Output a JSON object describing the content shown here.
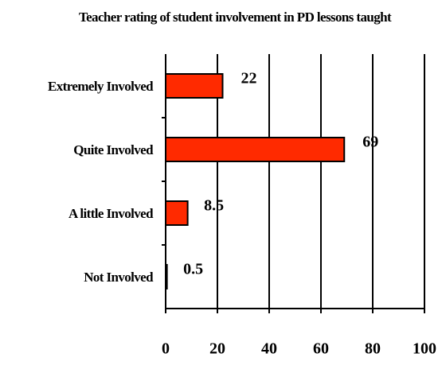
{
  "chart_data": {
    "type": "hbar",
    "title": "Teacher rating of student involvement in PD lessons taught",
    "categories": [
      "Extremely Involved",
      "Quite Involved",
      "A little Involved",
      "Not Involved"
    ],
    "values": [
      22,
      69,
      8.5,
      0.5
    ],
    "color": "#ff2a00",
    "xlim": [
      0,
      100
    ],
    "xticks": [
      0,
      20,
      40,
      60,
      80,
      100
    ],
    "grid": true
  }
}
